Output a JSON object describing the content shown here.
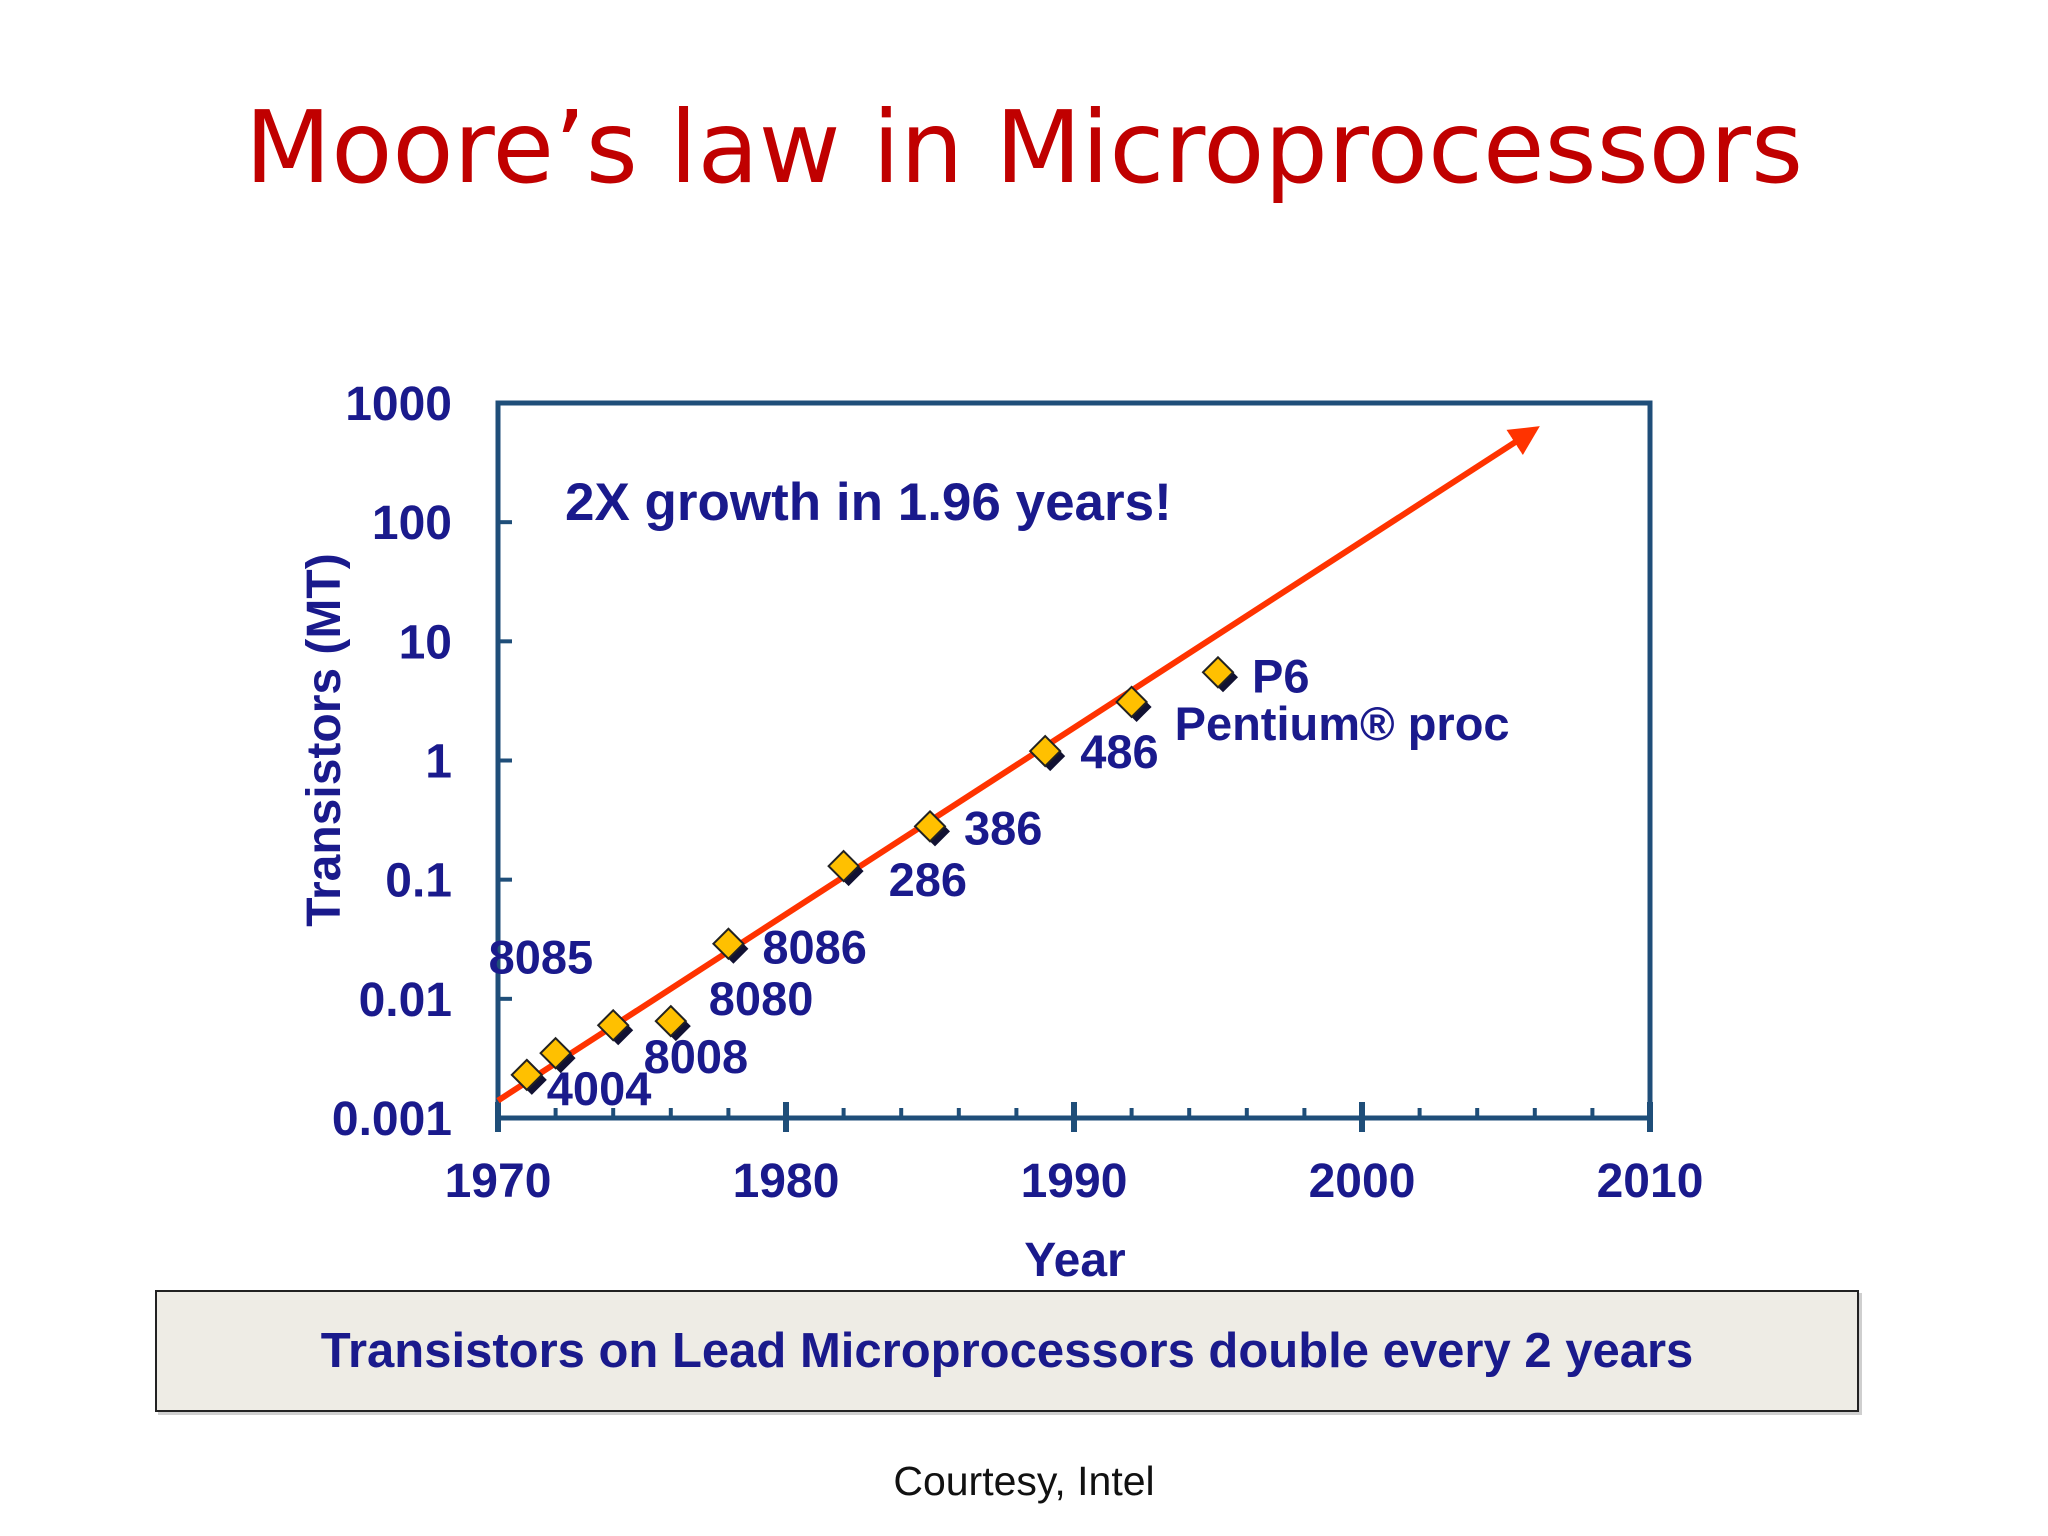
{
  "slide": {
    "title": "Moore’s law in Microprocessors",
    "caption": "Transistors on Lead Microprocessors double every 2 years",
    "courtesy": "Courtesy, Intel"
  },
  "colors": {
    "title": "#c00000",
    "axis_text": "#1a1a8c",
    "frame": "#1f4e79",
    "trend_line": "#ff3300",
    "marker_fill": "#ffc000",
    "caption_bg": "#eeece5"
  },
  "chart_data": {
    "type": "scatter",
    "xlabel": "Year",
    "ylabel": "Transistors (MT)",
    "annotation": "2X growth in 1.96 years!",
    "x_scale": "linear",
    "y_scale": "log",
    "xlim": [
      1970,
      2010
    ],
    "ylim": [
      0.001,
      1000
    ],
    "x_ticks": [
      "1970",
      "1980",
      "1990",
      "2000",
      "2010"
    ],
    "y_ticks": [
      "1000",
      "100",
      "10",
      "1",
      "0.1",
      "0.01",
      "0.001"
    ],
    "grid": false,
    "series": [
      {
        "points": [
          {
            "label": "4004",
            "x": 1971,
            "y": 0.0023
          },
          {
            "label": "8008",
            "x": 1972,
            "y": 0.0035
          },
          {
            "label": "8085",
            "x": 1974,
            "y": 0.006
          },
          {
            "label": "8080",
            "x": 1976,
            "y": 0.0065
          },
          {
            "label": "8086",
            "x": 1978,
            "y": 0.029
          },
          {
            "label": "286",
            "x": 1982,
            "y": 0.13
          },
          {
            "label": "386",
            "x": 1985,
            "y": 0.28
          },
          {
            "label": "486",
            "x": 1989,
            "y": 1.2
          },
          {
            "label": "Pentium® proc",
            "x": 1992,
            "y": 3.1
          },
          {
            "label": "P6",
            "x": 1995,
            "y": 5.5
          }
        ]
      }
    ],
    "trend": {
      "x": [
        1970,
        2006
      ],
      "y": [
        0.0014,
        600
      ]
    }
  }
}
